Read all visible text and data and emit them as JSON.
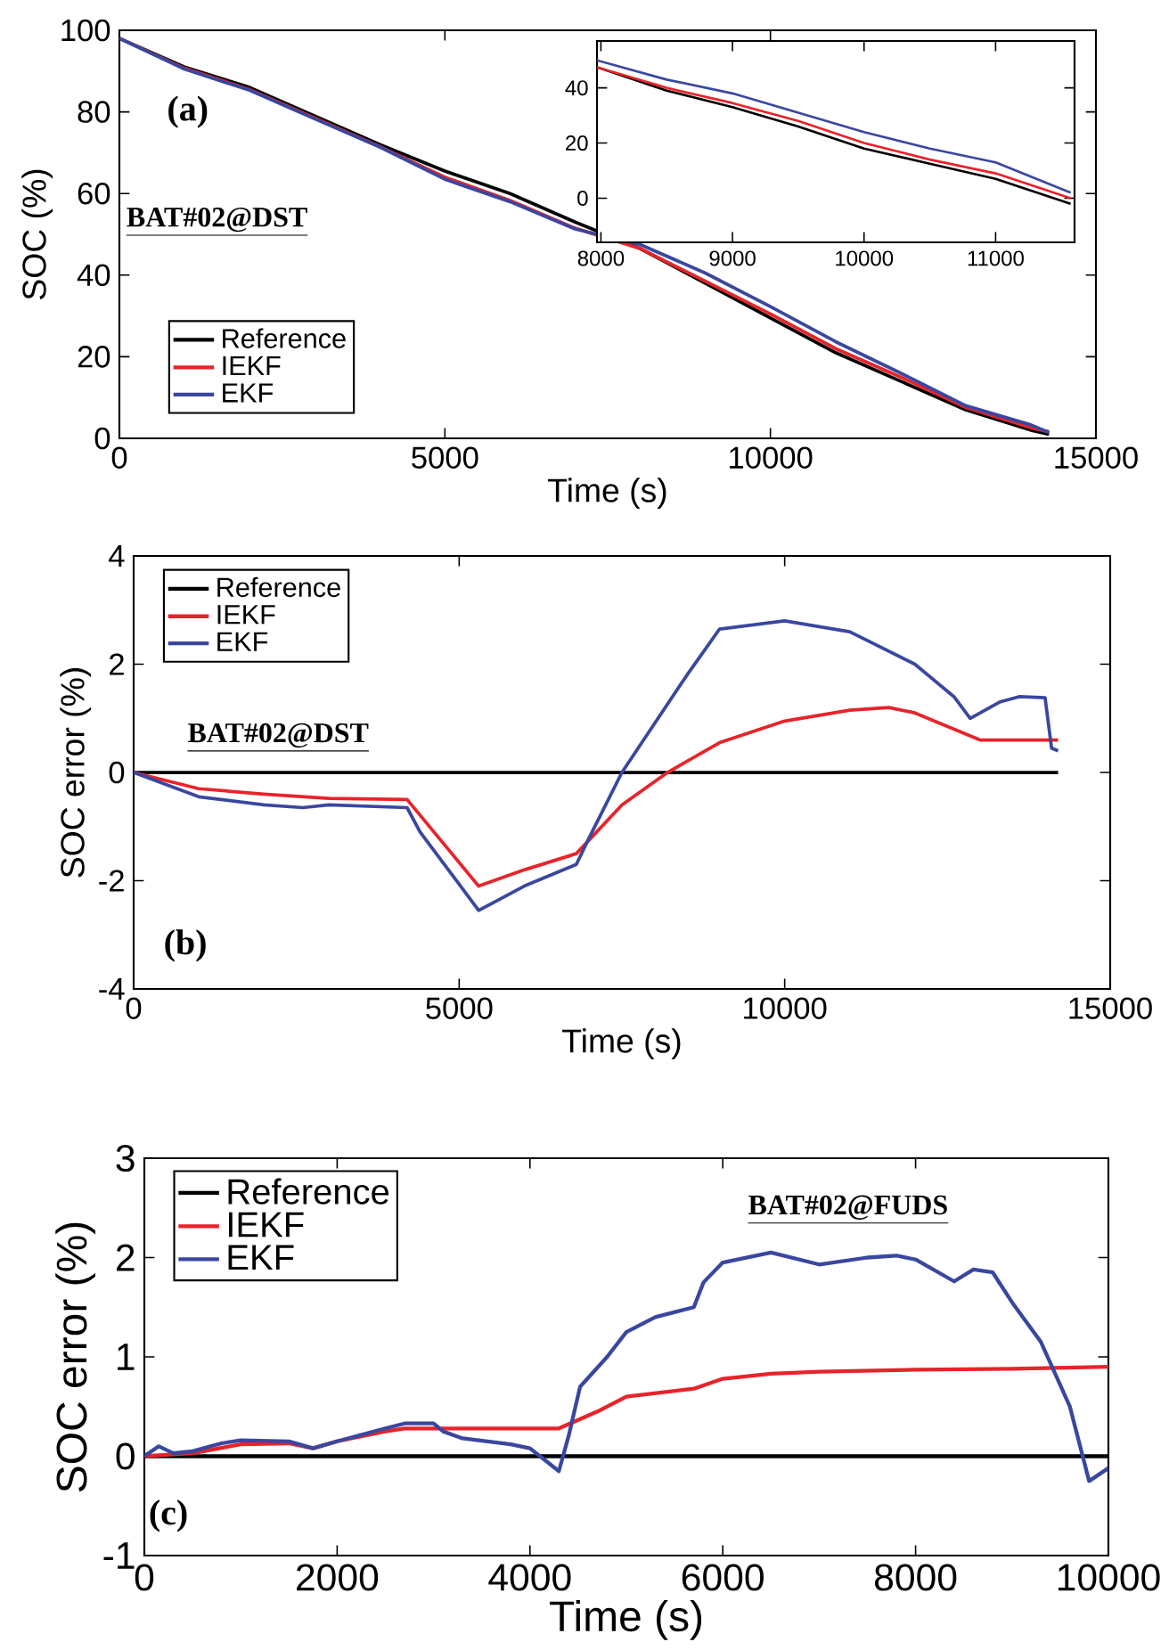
{
  "chart_data": [
    {
      "type": "line",
      "xlabel": "Time (s)",
      "ylabel": "SOC (%)",
      "annotations": [
        "(a)",
        "BAT#02@DST"
      ],
      "xlim": [
        0,
        15000
      ],
      "ylim": [
        0,
        100
      ],
      "xticks": [
        0,
        5000,
        10000,
        15000
      ],
      "yticks": [
        0,
        20,
        40,
        60,
        80,
        100
      ],
      "legend": "bottom left",
      "grid": false,
      "x": [
        0,
        1000,
        2000,
        3000,
        4000,
        5000,
        6000,
        7000,
        8000,
        9000,
        10000,
        11000,
        12000,
        13000,
        14000,
        14280
      ],
      "series": [
        {
          "name": "Reference",
          "color": "#000000",
          "values": [
            98,
            91,
            86,
            79,
            72,
            65.5,
            60,
            53,
            46.5,
            38,
            29.5,
            21,
            14,
            7,
            2,
            1
          ]
        },
        {
          "name": "IEKF",
          "color": "#e8232a",
          "values": [
            98,
            90.7,
            85.5,
            78.5,
            71.5,
            64,
            58.3,
            51.5,
            46.5,
            38.5,
            30.5,
            22,
            15,
            7.6,
            2.6,
            1.6
          ]
        },
        {
          "name": "EKF",
          "color": "#3a47a0",
          "values": [
            98,
            90.5,
            85.3,
            78.3,
            71.4,
            63.5,
            58,
            51.3,
            47.5,
            40.5,
            32.3,
            23.7,
            16,
            8,
            3.3,
            1.4
          ]
        }
      ]
    },
    {
      "type": "line",
      "xlim": [
        7970,
        11600
      ],
      "ylim": [
        -16,
        57
      ],
      "xticks": [
        8000,
        9000,
        10000,
        11000
      ],
      "yticks": [
        0,
        20,
        40
      ],
      "grid": false,
      "x": [
        7970,
        8500,
        9000,
        9500,
        10000,
        10500,
        11000,
        11570
      ],
      "series": [
        {
          "color": "#000000",
          "values": [
            47.5,
            39,
            33,
            26,
            18,
            12.5,
            7,
            -2
          ]
        },
        {
          "color": "#e8232a",
          "values": [
            47.5,
            40,
            34.5,
            28,
            20,
            14,
            9,
            0
          ]
        },
        {
          "color": "#3a47a0",
          "values": [
            50,
            43,
            38,
            31,
            24,
            18,
            13,
            2
          ]
        }
      ]
    },
    {
      "type": "line",
      "xlabel": "Time (s)",
      "ylabel": "SOC error (%)",
      "annotations": [
        "BAT#02@DST",
        "(b)"
      ],
      "xlim": [
        0,
        15000
      ],
      "ylim": [
        -4,
        4
      ],
      "xticks": [
        0,
        5000,
        10000,
        15000
      ],
      "yticks": [
        -4,
        -2,
        0,
        2,
        4
      ],
      "legend": "top left",
      "grid": false,
      "series": [
        {
          "name": "Reference",
          "color": "#000000",
          "x": [
            0,
            14200
          ],
          "values": [
            0,
            0
          ]
        },
        {
          "name": "IEKF",
          "color": "#e8232a",
          "x": [
            0,
            1000,
            2000,
            3000,
            4200,
            5300,
            6000,
            6800,
            7500,
            8200,
            9000,
            10000,
            11000,
            11600,
            12000,
            13000,
            14200
          ],
          "values": [
            0,
            -0.3,
            -0.4,
            -0.48,
            -0.5,
            -2.1,
            -1.8,
            -1.5,
            -0.6,
            0,
            0.55,
            0.95,
            1.15,
            1.2,
            1.1,
            0.6,
            0.6
          ]
        },
        {
          "name": "EKF",
          "color": "#3a47a0",
          "x": [
            0,
            1000,
            2000,
            2600,
            3000,
            4200,
            4400,
            5300,
            6000,
            6800,
            7000,
            7500,
            8000,
            8500,
            9000,
            10000,
            11000,
            12000,
            12600,
            12850,
            13300,
            13600,
            14000,
            14100,
            14200
          ],
          "values": [
            0,
            -0.45,
            -0.6,
            -0.65,
            -0.6,
            -0.65,
            -1.1,
            -2.55,
            -2.1,
            -1.7,
            -1.2,
            0,
            0.9,
            1.8,
            2.65,
            2.8,
            2.6,
            2.0,
            1.4,
            1.0,
            1.3,
            1.4,
            1.38,
            0.45,
            0.4
          ]
        }
      ]
    },
    {
      "type": "line",
      "xlabel": "Time (s)",
      "ylabel": "SOC error (%)",
      "annotations": [
        "BAT#02@FUDS",
        "(c)"
      ],
      "xlim": [
        0,
        10000
      ],
      "ylim": [
        -1,
        3
      ],
      "xticks": [
        0,
        2000,
        4000,
        6000,
        8000,
        10000
      ],
      "yticks": [
        -1,
        0,
        1,
        2,
        3
      ],
      "legend": "top left",
      "grid": false,
      "series": [
        {
          "name": "Reference",
          "color": "#000000",
          "x": [
            0,
            10000
          ],
          "values": [
            0,
            0
          ]
        },
        {
          "name": "IEKF",
          "color": "#e8232a",
          "x": [
            0,
            500,
            1000,
            1500,
            1750,
            2000,
            2500,
            2700,
            3000,
            4000,
            4300,
            4700,
            5000,
            5700,
            6000,
            6500,
            7000,
            8000,
            9000,
            10000
          ],
          "values": [
            0,
            0.03,
            0.12,
            0.13,
            0.08,
            0.15,
            0.25,
            0.28,
            0.28,
            0.28,
            0.28,
            0.45,
            0.6,
            0.68,
            0.78,
            0.83,
            0.85,
            0.87,
            0.88,
            0.9
          ]
        },
        {
          "name": "EKF",
          "color": "#3a47a0",
          "x": [
            0,
            150,
            300,
            500,
            800,
            1000,
            1500,
            1750,
            2000,
            2500,
            2700,
            3000,
            3100,
            3300,
            3800,
            4000,
            4300,
            4400,
            4520,
            4800,
            5000,
            5300,
            5700,
            5800,
            6000,
            6500,
            7000,
            7500,
            7800,
            8000,
            8400,
            8600,
            8800,
            9000,
            9300,
            9600,
            9800,
            10000
          ],
          "values": [
            0,
            0.1,
            0.03,
            0.05,
            0.13,
            0.16,
            0.15,
            0.08,
            0.15,
            0.28,
            0.33,
            0.33,
            0.25,
            0.18,
            0.12,
            0.08,
            -0.15,
            0.2,
            0.7,
            1.0,
            1.25,
            1.4,
            1.5,
            1.75,
            1.95,
            2.05,
            1.93,
            2.0,
            2.02,
            1.98,
            1.76,
            1.88,
            1.85,
            1.55,
            1.15,
            0.5,
            -0.25,
            -0.12
          ]
        }
      ]
    }
  ]
}
